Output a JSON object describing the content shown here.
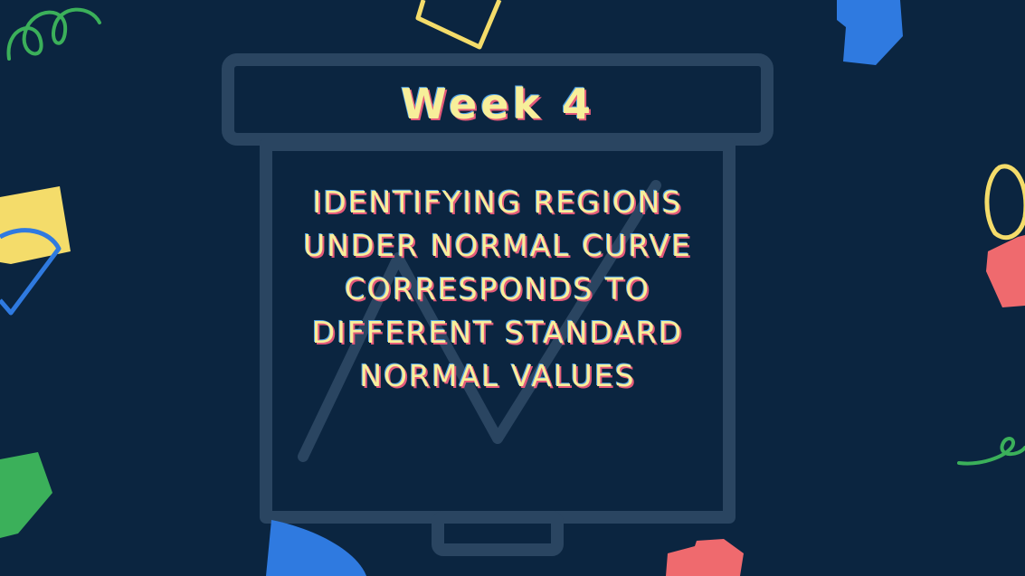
{
  "slide": {
    "title": "Week 4",
    "lines": [
      "IDENTIFYING REGIONS",
      "UNDER NORMAL CURVE",
      "CORRESPONDS TO",
      "DIFFERENT STANDARD",
      "NORMAL VALUES"
    ]
  },
  "colors": {
    "background": "#0b2540",
    "board_outline": "#2a4561",
    "text": "#f7ef9a",
    "accent_red": "#e35a7a",
    "accent_blue": "#4ea0e8",
    "shape_yellow": "#f4dc6a",
    "shape_blue": "#2f7ae0",
    "shape_green": "#3bb05a",
    "shape_red": "#ef6a6e"
  },
  "decorations": [
    "green-squiggle-icon",
    "yellow-square-icon",
    "blue-square-icon",
    "yellow-block-icon",
    "blue-arc-icon",
    "green-block-icon",
    "blue-semicircle-icon",
    "red-plus-block-icon",
    "yellow-loop-icon",
    "red-block-icon",
    "green-curl-icon",
    "presentation-board-icon",
    "trend-line-icon"
  ]
}
